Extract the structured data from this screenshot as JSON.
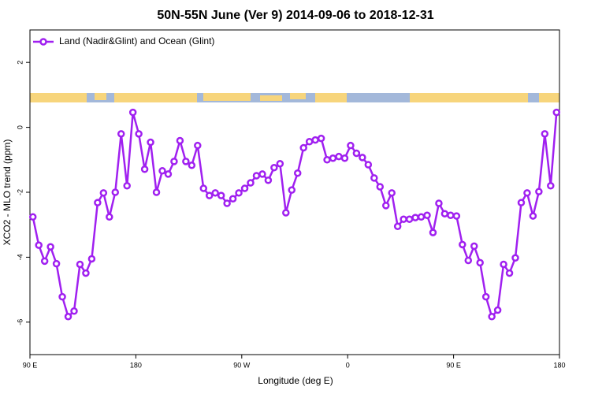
{
  "chart_data": {
    "type": "line",
    "title": "50N-55N June (Ver 9)   2014-09-06 to 2018-12-31",
    "x_label": "Longitude (deg E)",
    "y_label": "XCO2 - MLO trend (ppm)",
    "xlim": [
      90,
      540
    ],
    "ylim": [
      -7,
      3
    ],
    "xticks": [
      {
        "value": 90,
        "label": "90 E"
      },
      180,
      {
        "value": 270,
        "label": "90 W"
      },
      {
        "value": 360,
        "label": "0"
      },
      {
        "value": 450,
        "label": "90 E"
      },
      {
        "value": 540,
        "label": "180"
      }
    ],
    "yticks": [
      -6,
      -4,
      -2,
      0,
      2
    ],
    "legend": "top-left",
    "x": [
      92.5,
      97.5,
      102.5,
      107.5,
      112.5,
      117.5,
      122.5,
      127.5,
      132.5,
      137.5,
      142.5,
      147.5,
      152.5,
      157.5,
      162.5,
      167.5,
      172.5,
      177.5,
      182.5,
      187.5,
      192.5,
      197.5,
      202.5,
      207.5,
      212.5,
      217.5,
      222.5,
      227.5,
      232.5,
      237.5,
      242.5,
      247.5,
      252.5,
      257.5,
      262.5,
      267.5,
      272.5,
      277.5,
      282.5,
      287.5,
      292.5,
      297.5,
      302.5,
      307.5,
      312.5,
      317.5,
      322.5,
      327.5,
      332.5,
      337.5,
      342.5,
      347.5,
      352.5,
      357.5,
      362.5,
      367.5,
      372.5,
      377.5,
      382.5,
      387.5,
      392.5,
      397.5,
      402.5,
      407.5,
      412.5,
      417.5,
      422.5,
      427.5,
      432.5,
      437.5,
      442.5,
      447.5,
      452.5,
      457.5,
      462.5,
      467.5,
      472.5,
      477.5,
      482.5,
      487.5,
      492.5,
      497.5,
      502.5,
      507.5,
      512.5,
      517.5,
      522.5,
      527.5,
      532.5,
      537.5
    ],
    "series": [
      {
        "name": "Land (Nadir&Glint) and Ocean (Glint)",
        "color": "#a020f0",
        "values": [
          -2.76,
          -3.63,
          -4.12,
          -3.68,
          -4.2,
          -5.22,
          -5.83,
          -5.66,
          -4.22,
          -4.49,
          -4.05,
          -2.32,
          -2.02,
          -2.76,
          -2.0,
          -0.2,
          -1.8,
          0.46,
          -0.2,
          -1.29,
          -0.46,
          -2.0,
          -1.34,
          -1.44,
          -1.05,
          -0.41,
          -1.05,
          -1.17,
          -0.56,
          -1.88,
          -2.1,
          -2.02,
          -2.1,
          -2.34,
          -2.2,
          -2.02,
          -1.88,
          -1.71,
          -1.49,
          -1.44,
          -1.63,
          -1.24,
          -1.12,
          -2.63,
          -1.93,
          -1.41,
          -0.63,
          -0.44,
          -0.39,
          -0.34,
          -1.0,
          -0.95,
          -0.9,
          -0.95,
          -0.56,
          -0.8,
          -0.93,
          -1.15,
          -1.56,
          -1.83,
          -2.41,
          -2.02,
          -3.05,
          -2.83,
          -2.83,
          -2.78,
          -2.76,
          -2.71,
          -3.24,
          -2.34,
          -2.66,
          -2.71,
          -2.73,
          -3.61,
          -4.1,
          -3.66,
          -4.17,
          -5.22,
          -5.83,
          -5.63,
          -4.22,
          -4.49,
          -4.02,
          -2.32,
          -2.02,
          -2.73,
          -1.98,
          -0.2,
          -1.8,
          0.46
        ]
      }
    ]
  }
}
